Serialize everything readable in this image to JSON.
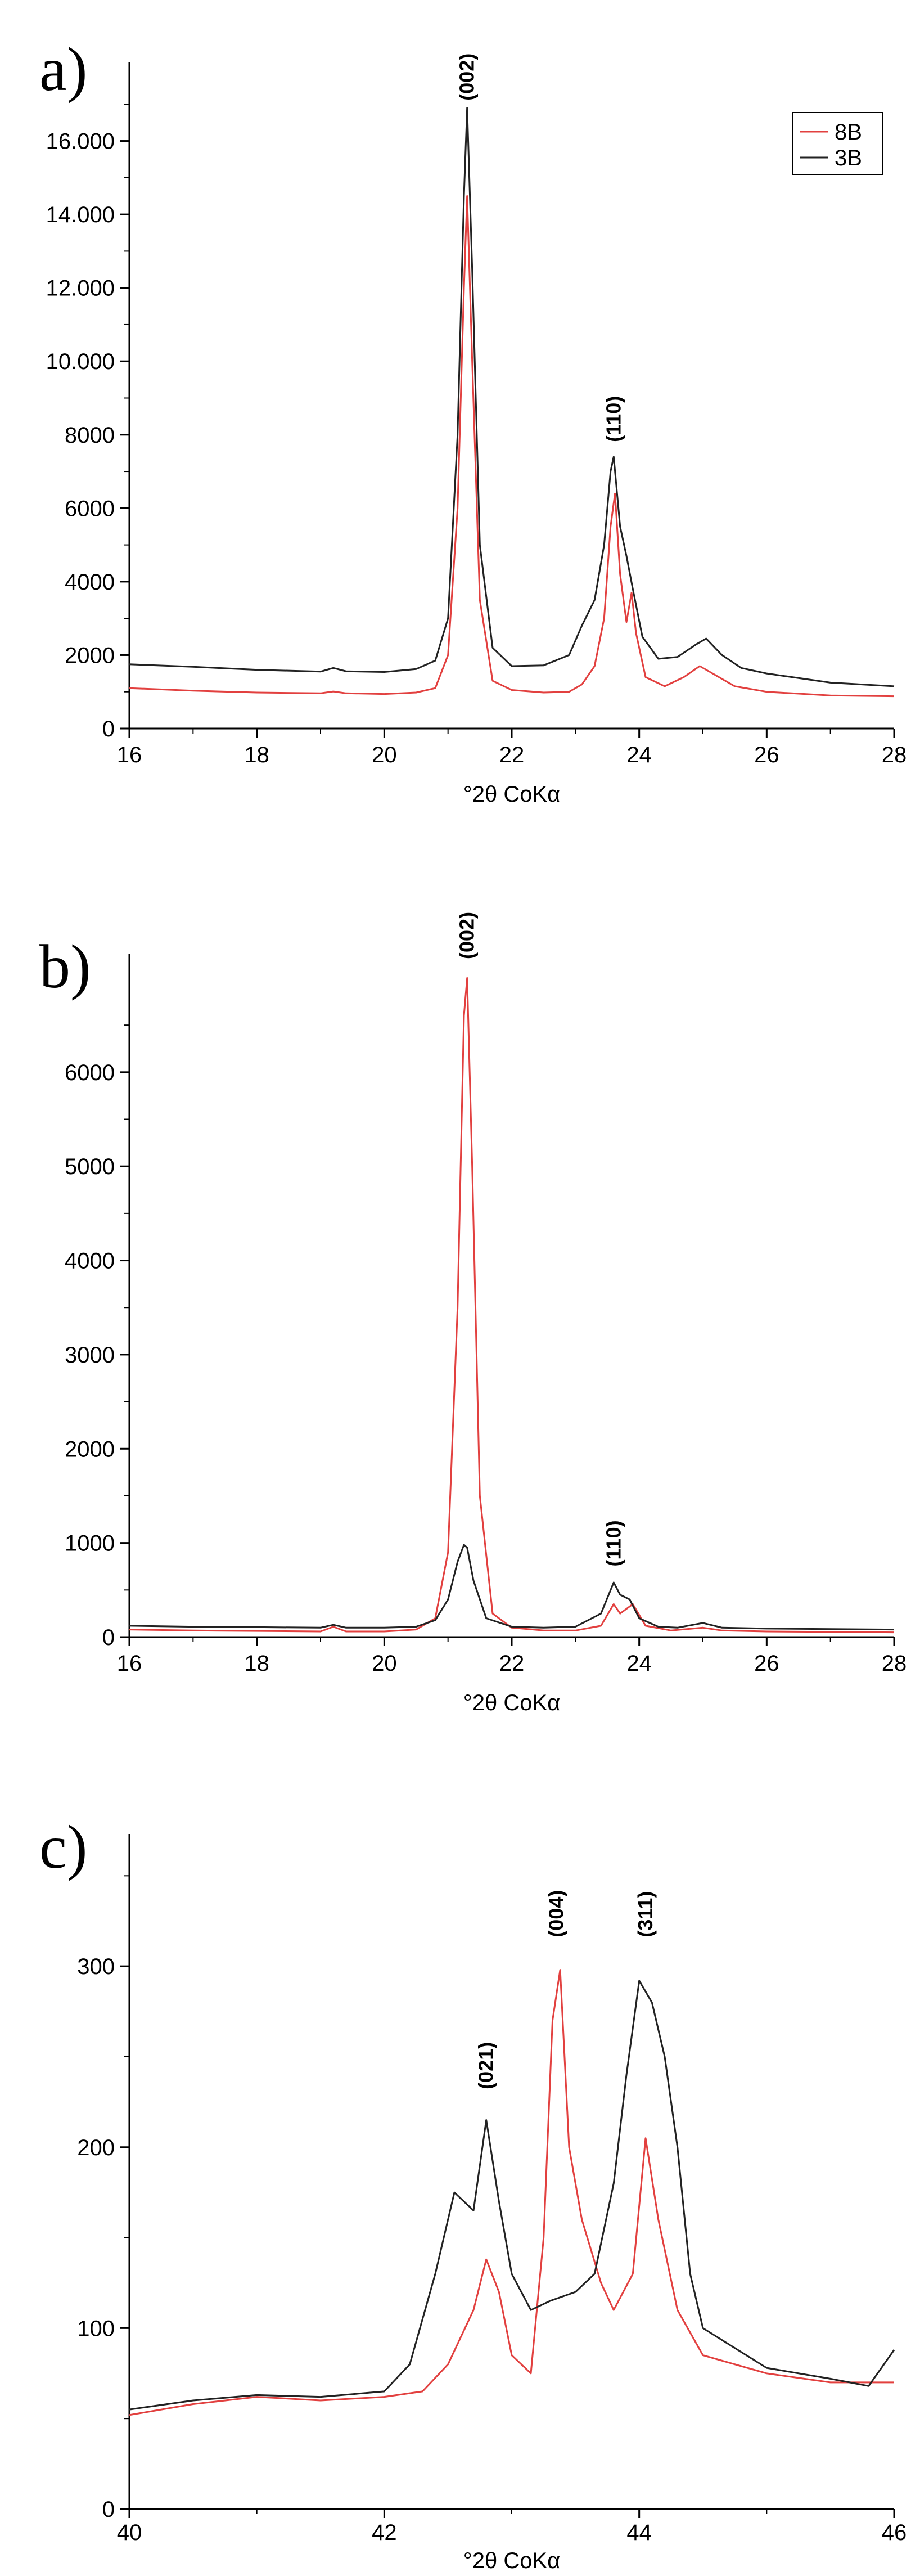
{
  "chart_data": [
    {
      "panel": "a)",
      "type": "line",
      "xlabel": "°2θ CoKα",
      "ylabel": "",
      "xlim": [
        16,
        28
      ],
      "ylim": [
        0,
        18000
      ],
      "x_ticks": [
        16,
        18,
        20,
        22,
        24,
        26,
        28
      ],
      "x_tick_labels": [
        "16",
        "18",
        "20",
        "22",
        "24",
        "26",
        "28"
      ],
      "y_ticks": [
        0,
        2000,
        4000,
        6000,
        8000,
        10000,
        12000,
        14000,
        16000
      ],
      "y_tick_labels": [
        "0",
        "2000",
        "4000",
        "6000",
        "8000",
        "10.000",
        "12.000",
        "14.000",
        "16.000"
      ],
      "legend": {
        "position": "top-right",
        "entries": [
          "8B",
          "3B"
        ]
      },
      "annotations": [
        {
          "text": "(002)",
          "x": 21.3,
          "y": 17100
        },
        {
          "text": "(110)",
          "x": 23.6,
          "y": 7800
        }
      ],
      "series": [
        {
          "name": "8B",
          "color": "#e2403f",
          "points": [
            [
              16,
              1100
            ],
            [
              17,
              1030
            ],
            [
              18,
              980
            ],
            [
              19,
              960
            ],
            [
              19.2,
              1010
            ],
            [
              19.4,
              960
            ],
            [
              20,
              940
            ],
            [
              20.5,
              980
            ],
            [
              20.8,
              1100
            ],
            [
              21,
              2000
            ],
            [
              21.15,
              6000
            ],
            [
              21.25,
              12000
            ],
            [
              21.3,
              14500
            ],
            [
              21.38,
              10000
            ],
            [
              21.5,
              3500
            ],
            [
              21.7,
              1300
            ],
            [
              22,
              1050
            ],
            [
              22.5,
              980
            ],
            [
              22.9,
              1000
            ],
            [
              23.1,
              1200
            ],
            [
              23.3,
              1700
            ],
            [
              23.45,
              3000
            ],
            [
              23.55,
              5500
            ],
            [
              23.62,
              6400
            ],
            [
              23.7,
              4200
            ],
            [
              23.8,
              2900
            ],
            [
              23.88,
              3700
            ],
            [
              23.95,
              2600
            ],
            [
              24.1,
              1400
            ],
            [
              24.4,
              1150
            ],
            [
              24.7,
              1400
            ],
            [
              24.95,
              1700
            ],
            [
              25.2,
              1450
            ],
            [
              25.5,
              1150
            ],
            [
              26,
              1000
            ],
            [
              27,
              900
            ],
            [
              28,
              880
            ]
          ]
        },
        {
          "name": "3B",
          "color": "#222222",
          "points": [
            [
              16,
              1750
            ],
            [
              17,
              1680
            ],
            [
              18,
              1600
            ],
            [
              19,
              1550
            ],
            [
              19.2,
              1650
            ],
            [
              19.4,
              1560
            ],
            [
              20,
              1540
            ],
            [
              20.5,
              1620
            ],
            [
              20.8,
              1850
            ],
            [
              21,
              3000
            ],
            [
              21.15,
              8000
            ],
            [
              21.25,
              14500
            ],
            [
              21.3,
              16900
            ],
            [
              21.38,
              12500
            ],
            [
              21.5,
              5000
            ],
            [
              21.7,
              2200
            ],
            [
              22,
              1700
            ],
            [
              22.5,
              1720
            ],
            [
              22.9,
              2000
            ],
            [
              23.1,
              2800
            ],
            [
              23.3,
              3500
            ],
            [
              23.45,
              5000
            ],
            [
              23.55,
              7000
            ],
            [
              23.6,
              7400
            ],
            [
              23.7,
              5500
            ],
            [
              23.8,
              4700
            ],
            [
              23.9,
              3800
            ],
            [
              24.05,
              2500
            ],
            [
              24.3,
              1900
            ],
            [
              24.6,
              1950
            ],
            [
              24.9,
              2300
            ],
            [
              25.05,
              2450
            ],
            [
              25.3,
              2000
            ],
            [
              25.6,
              1650
            ],
            [
              26,
              1500
            ],
            [
              27,
              1250
            ],
            [
              28,
              1150
            ]
          ]
        }
      ]
    },
    {
      "panel": "b)",
      "type": "line",
      "xlabel": "°2θ CoKα",
      "ylabel": "",
      "xlim": [
        16,
        28
      ],
      "ylim": [
        0,
        7200
      ],
      "x_ticks": [
        16,
        18,
        20,
        22,
        24,
        26,
        28
      ],
      "x_tick_labels": [
        "16",
        "18",
        "20",
        "22",
        "24",
        "26",
        "28"
      ],
      "y_ticks": [
        0,
        1000,
        2000,
        3000,
        4000,
        5000,
        6000
      ],
      "y_tick_labels": [
        "0",
        "1000",
        "2000",
        "3000",
        "4000",
        "5000",
        "6000"
      ],
      "annotations": [
        {
          "text": "(002)",
          "x": 21.3,
          "y": 7200
        },
        {
          "text": "(110)",
          "x": 23.6,
          "y": 750
        }
      ],
      "series": [
        {
          "name": "8B",
          "color": "#e2403f",
          "points": [
            [
              16,
              80
            ],
            [
              17,
              70
            ],
            [
              18,
              65
            ],
            [
              19,
              60
            ],
            [
              19.2,
              110
            ],
            [
              19.4,
              60
            ],
            [
              20,
              60
            ],
            [
              20.5,
              80
            ],
            [
              20.8,
              200
            ],
            [
              21,
              900
            ],
            [
              21.15,
              3500
            ],
            [
              21.25,
              6600
            ],
            [
              21.3,
              7000
            ],
            [
              21.38,
              5000
            ],
            [
              21.5,
              1500
            ],
            [
              21.7,
              250
            ],
            [
              22,
              100
            ],
            [
              22.5,
              70
            ],
            [
              23,
              70
            ],
            [
              23.4,
              120
            ],
            [
              23.6,
              350
            ],
            [
              23.7,
              250
            ],
            [
              23.9,
              350
            ],
            [
              24.1,
              120
            ],
            [
              24.5,
              70
            ],
            [
              25,
              100
            ],
            [
              25.3,
              70
            ],
            [
              26,
              60
            ],
            [
              27,
              55
            ],
            [
              28,
              50
            ]
          ]
        },
        {
          "name": "3B",
          "color": "#222222",
          "points": [
            [
              16,
              120
            ],
            [
              17,
              110
            ],
            [
              18,
              105
            ],
            [
              19,
              100
            ],
            [
              19.2,
              130
            ],
            [
              19.4,
              100
            ],
            [
              20,
              100
            ],
            [
              20.5,
              110
            ],
            [
              20.8,
              180
            ],
            [
              21,
              400
            ],
            [
              21.15,
              800
            ],
            [
              21.25,
              980
            ],
            [
              21.3,
              950
            ],
            [
              21.4,
              600
            ],
            [
              21.6,
              200
            ],
            [
              22,
              110
            ],
            [
              22.5,
              100
            ],
            [
              23,
              110
            ],
            [
              23.4,
              250
            ],
            [
              23.6,
              580
            ],
            [
              23.7,
              450
            ],
            [
              23.85,
              400
            ],
            [
              24,
              200
            ],
            [
              24.3,
              110
            ],
            [
              24.6,
              100
            ],
            [
              25,
              150
            ],
            [
              25.3,
              100
            ],
            [
              26,
              90
            ],
            [
              27,
              85
            ],
            [
              28,
              80
            ]
          ]
        }
      ]
    },
    {
      "panel": "c)",
      "type": "line",
      "xlabel": "°2θ CoKα",
      "ylabel": "",
      "xlim": [
        40,
        46
      ],
      "ylim": [
        0,
        370
      ],
      "x_ticks": [
        40,
        42,
        44,
        46
      ],
      "x_tick_labels": [
        "40",
        "42",
        "44",
        "46"
      ],
      "y_ticks": [
        0,
        100,
        200,
        300
      ],
      "y_tick_labels": [
        "0",
        "100",
        "200",
        "300"
      ],
      "annotations": [
        {
          "text": "(021)",
          "x": 42.8,
          "y": 232
        },
        {
          "text": "(004)",
          "x": 43.35,
          "y": 316
        },
        {
          "text": "(311)",
          "x": 44.05,
          "y": 316
        }
      ],
      "series": [
        {
          "name": "8B",
          "color": "#e2403f",
          "points": [
            [
              40,
              52
            ],
            [
              40.5,
              58
            ],
            [
              41,
              62
            ],
            [
              41.5,
              60
            ],
            [
              42,
              62
            ],
            [
              42.3,
              65
            ],
            [
              42.5,
              80
            ],
            [
              42.7,
              110
            ],
            [
              42.8,
              138
            ],
            [
              42.9,
              120
            ],
            [
              43,
              85
            ],
            [
              43.15,
              75
            ],
            [
              43.25,
              150
            ],
            [
              43.32,
              270
            ],
            [
              43.38,
              298
            ],
            [
              43.45,
              200
            ],
            [
              43.55,
              160
            ],
            [
              43.7,
              125
            ],
            [
              43.8,
              110
            ],
            [
              43.95,
              130
            ],
            [
              44.05,
              205
            ],
            [
              44.15,
              160
            ],
            [
              44.3,
              110
            ],
            [
              44.5,
              85
            ],
            [
              45,
              75
            ],
            [
              45.5,
              70
            ],
            [
              46,
              70
            ]
          ]
        },
        {
          "name": "3B",
          "color": "#222222",
          "points": [
            [
              40,
              55
            ],
            [
              40.5,
              60
            ],
            [
              41,
              63
            ],
            [
              41.5,
              62
            ],
            [
              42,
              65
            ],
            [
              42.2,
              80
            ],
            [
              42.4,
              130
            ],
            [
              42.55,
              175
            ],
            [
              42.7,
              165
            ],
            [
              42.8,
              215
            ],
            [
              42.9,
              170
            ],
            [
              43,
              130
            ],
            [
              43.15,
              110
            ],
            [
              43.3,
              115
            ],
            [
              43.5,
              120
            ],
            [
              43.65,
              130
            ],
            [
              43.8,
              180
            ],
            [
              43.9,
              240
            ],
            [
              44,
              292
            ],
            [
              44.1,
              280
            ],
            [
              44.2,
              250
            ],
            [
              44.3,
              200
            ],
            [
              44.4,
              130
            ],
            [
              44.5,
              100
            ],
            [
              45,
              78
            ],
            [
              45.5,
              72
            ],
            [
              45.8,
              68
            ],
            [
              46,
              88
            ]
          ]
        }
      ]
    }
  ]
}
